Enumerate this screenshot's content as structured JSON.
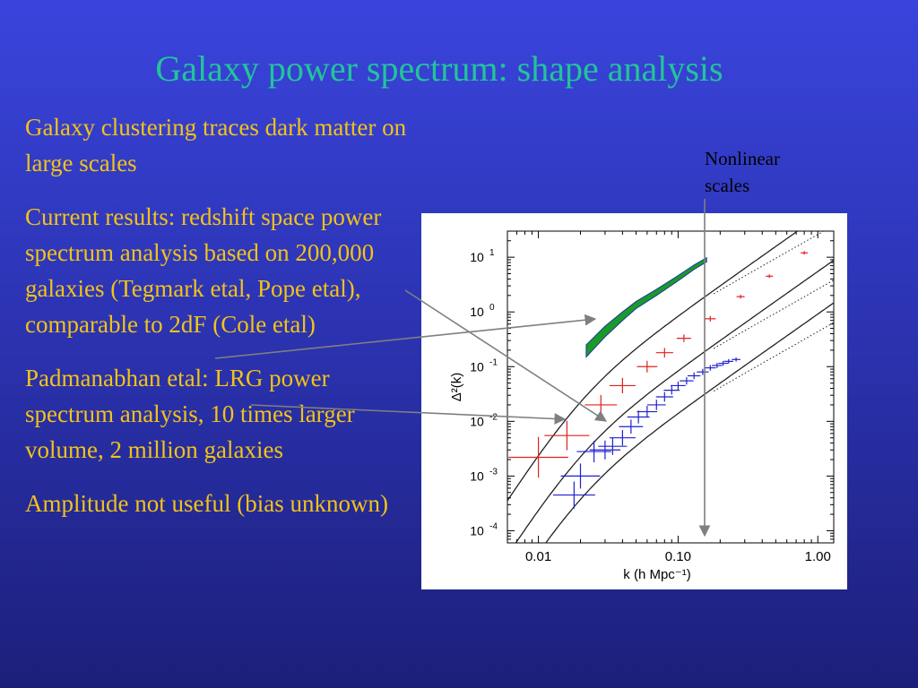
{
  "slide": {
    "title": "Galaxy power spectrum: shape analysis",
    "bullets": [
      "Galaxy clustering traces dark matter on large scales",
      "Current results: redshift space power spectrum analysis based on 200,000 galaxies (Tegmark etal, Pope etal), comparable to 2dF (Cole etal)",
      "Padmanabhan etal: LRG power spectrum analysis, 10 times larger volume, 2 million galaxies",
      "Amplitude not useful (bias unknown)"
    ],
    "annotation": "Nonlinear\nscales"
  },
  "colors": {
    "title": "#22c49a",
    "bullet_text": "#f2c318",
    "red_points": "#e02020",
    "blue_points": "#2020d0",
    "green_band": "#1a9a2a"
  },
  "chart_data": {
    "type": "scatter",
    "xlabel": "k (h Mpc⁻¹)",
    "ylabel": "Δ²(k)",
    "x_scale": "log",
    "y_scale": "log",
    "xlim": [
      0.006,
      1.3
    ],
    "ylim": [
      6e-05,
      30
    ],
    "x_ticks": [
      {
        "value": 0.01,
        "label": "0.01"
      },
      {
        "value": 0.1,
        "label": "0.10"
      },
      {
        "value": 1,
        "label": "1.00"
      }
    ],
    "y_ticks": [
      {
        "value": 10,
        "label": "10",
        "exp": "1"
      },
      {
        "value": 1,
        "label": "10",
        "exp": "0"
      },
      {
        "value": 0.1,
        "label": "10",
        "exp": "-1"
      },
      {
        "value": 0.01,
        "label": "10",
        "exp": "-2"
      },
      {
        "value": 0.001,
        "label": "10",
        "exp": "-3"
      },
      {
        "value": 0.0001,
        "label": "10",
        "exp": "-4"
      }
    ],
    "series": [
      {
        "color": "#e02020",
        "points": [
          {
            "x": 0.01,
            "y": 0.0022
          },
          {
            "x": 0.016,
            "y": 0.0055
          },
          {
            "x": 0.028,
            "y": 0.02
          },
          {
            "x": 0.04,
            "y": 0.045
          },
          {
            "x": 0.06,
            "y": 0.1
          },
          {
            "x": 0.08,
            "y": 0.18
          },
          {
            "x": 0.11,
            "y": 0.33
          },
          {
            "x": 0.17,
            "y": 0.75
          },
          {
            "x": 0.28,
            "y": 1.9
          },
          {
            "x": 0.45,
            "y": 4.5
          },
          {
            "x": 0.8,
            "y": 12
          }
        ]
      },
      {
        "color": "#2020d0",
        "points": [
          {
            "x": 0.018,
            "y": 0.00045
          },
          {
            "x": 0.02,
            "y": 0.001
          },
          {
            "x": 0.025,
            "y": 0.0028
          },
          {
            "x": 0.03,
            "y": 0.003
          },
          {
            "x": 0.034,
            "y": 0.0035
          },
          {
            "x": 0.04,
            "y": 0.005
          },
          {
            "x": 0.046,
            "y": 0.008
          },
          {
            "x": 0.052,
            "y": 0.012
          },
          {
            "x": 0.06,
            "y": 0.015
          },
          {
            "x": 0.07,
            "y": 0.02
          },
          {
            "x": 0.08,
            "y": 0.028
          },
          {
            "x": 0.09,
            "y": 0.037
          },
          {
            "x": 0.1,
            "y": 0.045
          },
          {
            "x": 0.115,
            "y": 0.055
          },
          {
            "x": 0.13,
            "y": 0.068
          },
          {
            "x": 0.15,
            "y": 0.08
          },
          {
            "x": 0.17,
            "y": 0.095
          },
          {
            "x": 0.19,
            "y": 0.105
          },
          {
            "x": 0.21,
            "y": 0.115
          },
          {
            "x": 0.23,
            "y": 0.125
          },
          {
            "x": 0.26,
            "y": 0.135
          }
        ]
      }
    ],
    "band": {
      "color": "#1a9a2a",
      "x": [
        0.022,
        0.03,
        0.04,
        0.05,
        0.07,
        0.1,
        0.13,
        0.16
      ],
      "y_low": [
        0.15,
        0.35,
        0.7,
        1.15,
        2.0,
        3.7,
        6.0,
        8.2
      ],
      "y_high": [
        0.25,
        0.55,
        1.0,
        1.55,
        2.6,
        4.6,
        7.2,
        9.8
      ]
    },
    "models": [
      {
        "style": "solid",
        "k_eq": 0.02,
        "amplitude": 30,
        "extent": [
          0.006,
          1.3
        ]
      },
      {
        "style": "solid",
        "k_eq": 0.02,
        "amplitude": 3,
        "extent": [
          0.006,
          1.3
        ]
      },
      {
        "style": "solid",
        "k_eq": 0.02,
        "amplitude": 0.5,
        "extent": [
          0.006,
          1.3
        ]
      },
      {
        "style": "dotted",
        "k_eq": 0.02,
        "amplitude": 30,
        "extent": [
          0.18,
          1.3
        ],
        "flatten": 0.12
      },
      {
        "style": "dotted",
        "k_eq": 0.02,
        "amplitude": 3,
        "extent": [
          0.18,
          1.3
        ],
        "flatten": 0.12
      },
      {
        "style": "dotted",
        "k_eq": 0.02,
        "amplitude": 0.5,
        "extent": [
          0.18,
          1.3
        ],
        "flatten": 0.12
      }
    ],
    "nonlinear_marker_k": 0.18
  }
}
